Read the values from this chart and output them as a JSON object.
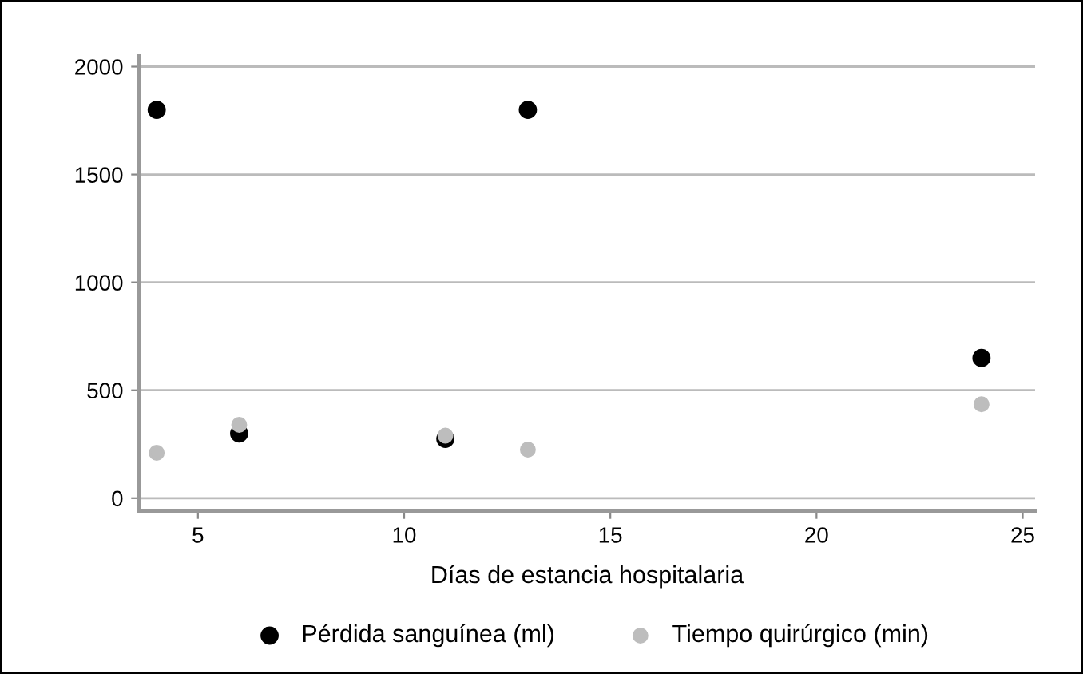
{
  "chart_data": {
    "type": "scatter",
    "xlabel": "Días de estancia hospitalaria",
    "xlim": [
      3.57,
      25.3
    ],
    "xticks": [
      5,
      10,
      15,
      20,
      25
    ],
    "ylim": [
      -60,
      2050
    ],
    "yticks": [
      0,
      500,
      1000,
      1500,
      2000
    ],
    "grid": "y",
    "legend": "bottom",
    "marker": "circle",
    "series": [
      {
        "name": "Pérdida sanguínea (ml)",
        "color": "#000000",
        "x": [
          4,
          6,
          11,
          13,
          24
        ],
        "values": [
          1800,
          300,
          275,
          1800,
          650
        ]
      },
      {
        "name": "Tiempo quirúrgico (min)",
        "color": "#bdbdbd",
        "x": [
          4,
          6,
          11,
          13,
          24
        ],
        "values": [
          210,
          340,
          290,
          225,
          435
        ]
      }
    ]
  }
}
